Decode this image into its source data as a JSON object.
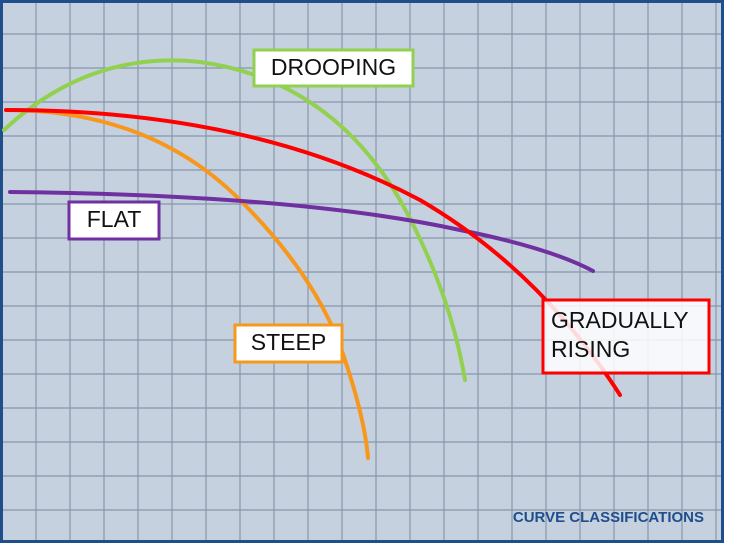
{
  "curves": [
    {
      "label": "DROOPING"
    },
    {
      "label": "FLAT"
    },
    {
      "label": "STEEP"
    },
    {
      "label_lines": [
        "GRADUALLY",
        "RISING"
      ]
    }
  ],
  "title": "CURVE CLASSIFICATIONS"
}
